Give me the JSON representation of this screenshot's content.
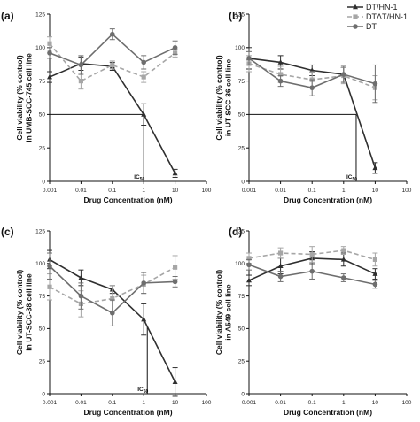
{
  "chart_data": [
    {
      "panel": "(a)",
      "type": "line",
      "x": [
        0.001,
        0.01,
        0.1,
        1,
        10
      ],
      "xlabel": "Drug Concentration (nM)",
      "ylabel_lines": [
        "Cell viability (% control)",
        "in UMB-SCC-745  cell line"
      ],
      "xticks": [
        "0.001",
        "0.01",
        "0.1",
        "1",
        "10",
        "100"
      ],
      "yticks": [
        "0",
        "25",
        "50",
        "75",
        "100",
        "125"
      ],
      "xscale": "log",
      "xlim": [
        0.001,
        100
      ],
      "ylim": [
        0,
        125
      ],
      "series": [
        {
          "name": "DT/HN-1",
          "values": [
            78,
            88,
            86,
            50,
            6
          ],
          "errors": [
            4,
            5,
            3,
            8,
            3
          ]
        },
        {
          "name": "DTΔT/HN-1",
          "values": [
            103,
            75,
            87,
            78,
            96
          ],
          "errors": [
            5,
            6,
            3,
            4,
            3
          ]
        },
        {
          "name": "DT",
          "values": [
            96,
            87,
            110,
            89,
            100
          ],
          "errors": [
            4,
            7,
            4,
            5,
            5
          ]
        }
      ],
      "ic50": {
        "label": "IC",
        "sub": "50",
        "x": 1,
        "y": 50
      }
    },
    {
      "panel": "(b)",
      "type": "line",
      "x": [
        0.001,
        0.01,
        0.1,
        1,
        10
      ],
      "xlabel": "Drug Concentration (nM)",
      "ylabel_lines": [
        "Cell viability (% control)",
        "in UT-SCC-36 cell line"
      ],
      "xticks": [
        "0.001",
        "0.01",
        "0.1",
        "1",
        "10",
        "100"
      ],
      "yticks": [
        "0",
        "25",
        "50",
        "75",
        "100",
        "125"
      ],
      "xscale": "log",
      "xlim": [
        0.001,
        100
      ],
      "ylim": [
        0,
        125
      ],
      "series": [
        {
          "name": "DT/HN-1",
          "values": [
            92,
            89,
            83,
            80,
            10
          ],
          "errors": [
            8,
            5,
            4,
            5,
            4
          ]
        },
        {
          "name": "DTΔT/HN-1",
          "values": [
            88,
            80,
            76,
            79,
            70
          ],
          "errors": [
            6,
            6,
            6,
            6,
            9
          ]
        },
        {
          "name": "DT",
          "values": [
            92,
            75,
            70,
            80,
            73
          ],
          "errors": [
            5,
            4,
            6,
            6,
            14
          ]
        }
      ],
      "ic50": {
        "label": "IC",
        "sub": "50",
        "x": 2.5,
        "y": 50
      }
    },
    {
      "panel": "(c)",
      "type": "line",
      "x": [
        0.001,
        0.01,
        0.1,
        1,
        10
      ],
      "xlabel": "Drug Concentration (nM)",
      "ylabel_lines": [
        "Cell viability (% control)",
        "in UT-SCC-38 cell line"
      ],
      "xticks": [
        "0.001",
        "0.01",
        "0.1",
        "1",
        "10",
        "100"
      ],
      "yticks": [
        "0",
        "25",
        "50",
        "75",
        "100",
        "125"
      ],
      "xscale": "log",
      "xlim": [
        0.001,
        100
      ],
      "ylim": [
        0,
        125
      ],
      "series": [
        {
          "name": "DT/HN-1",
          "values": [
            103,
            89,
            80,
            57,
            9
          ],
          "errors": [
            7,
            6,
            3,
            12,
            11
          ]
        },
        {
          "name": "DTΔT/HN-1",
          "values": [
            82,
            69,
            73,
            84,
            97
          ],
          "errors": [
            10,
            10,
            10,
            7,
            9
          ]
        },
        {
          "name": "DT",
          "values": [
            98,
            75,
            62,
            85,
            86
          ],
          "errors": [
            10,
            10,
            10,
            8,
            4
          ]
        }
      ],
      "ic50": {
        "label": "IC",
        "sub": "50",
        "x": 1.3,
        "y": 52
      }
    },
    {
      "panel": "(d)",
      "type": "line",
      "x": [
        0.001,
        0.01,
        0.1,
        1,
        10
      ],
      "xlabel": "Drug Concentration (nM)",
      "ylabel_lines": [
        "Cell viability (% control)",
        "in A549 cell line"
      ],
      "xticks": [
        "0.001",
        "0.01",
        "0.1",
        "1",
        "10",
        "100"
      ],
      "yticks": [
        "0",
        "25",
        "50",
        "75",
        "100",
        "125"
      ],
      "xscale": "log",
      "xlim": [
        0.001,
        100
      ],
      "ylim": [
        0,
        125
      ],
      "series": [
        {
          "name": "DT/HN-1",
          "values": [
            87,
            98,
            104,
            103,
            92
          ],
          "errors": [
            4,
            6,
            5,
            5,
            4
          ]
        },
        {
          "name": "DTΔT/HN-1",
          "values": [
            104,
            108,
            107,
            110,
            103
          ],
          "errors": [
            4,
            4,
            6,
            3,
            5
          ]
        },
        {
          "name": "DT",
          "values": [
            99,
            90,
            94,
            89,
            84
          ],
          "errors": [
            4,
            4,
            6,
            3,
            3
          ]
        }
      ]
    }
  ],
  "legend": {
    "placement": "top-right",
    "entries": [
      "DT/HN-1",
      "DTΔT/HN-1",
      "DT"
    ]
  },
  "colors": {
    "DT/HN-1": "#2f2f2f",
    "DTΔT/HN-1": "#a6a6a6",
    "DT": "#6e6e6e"
  }
}
